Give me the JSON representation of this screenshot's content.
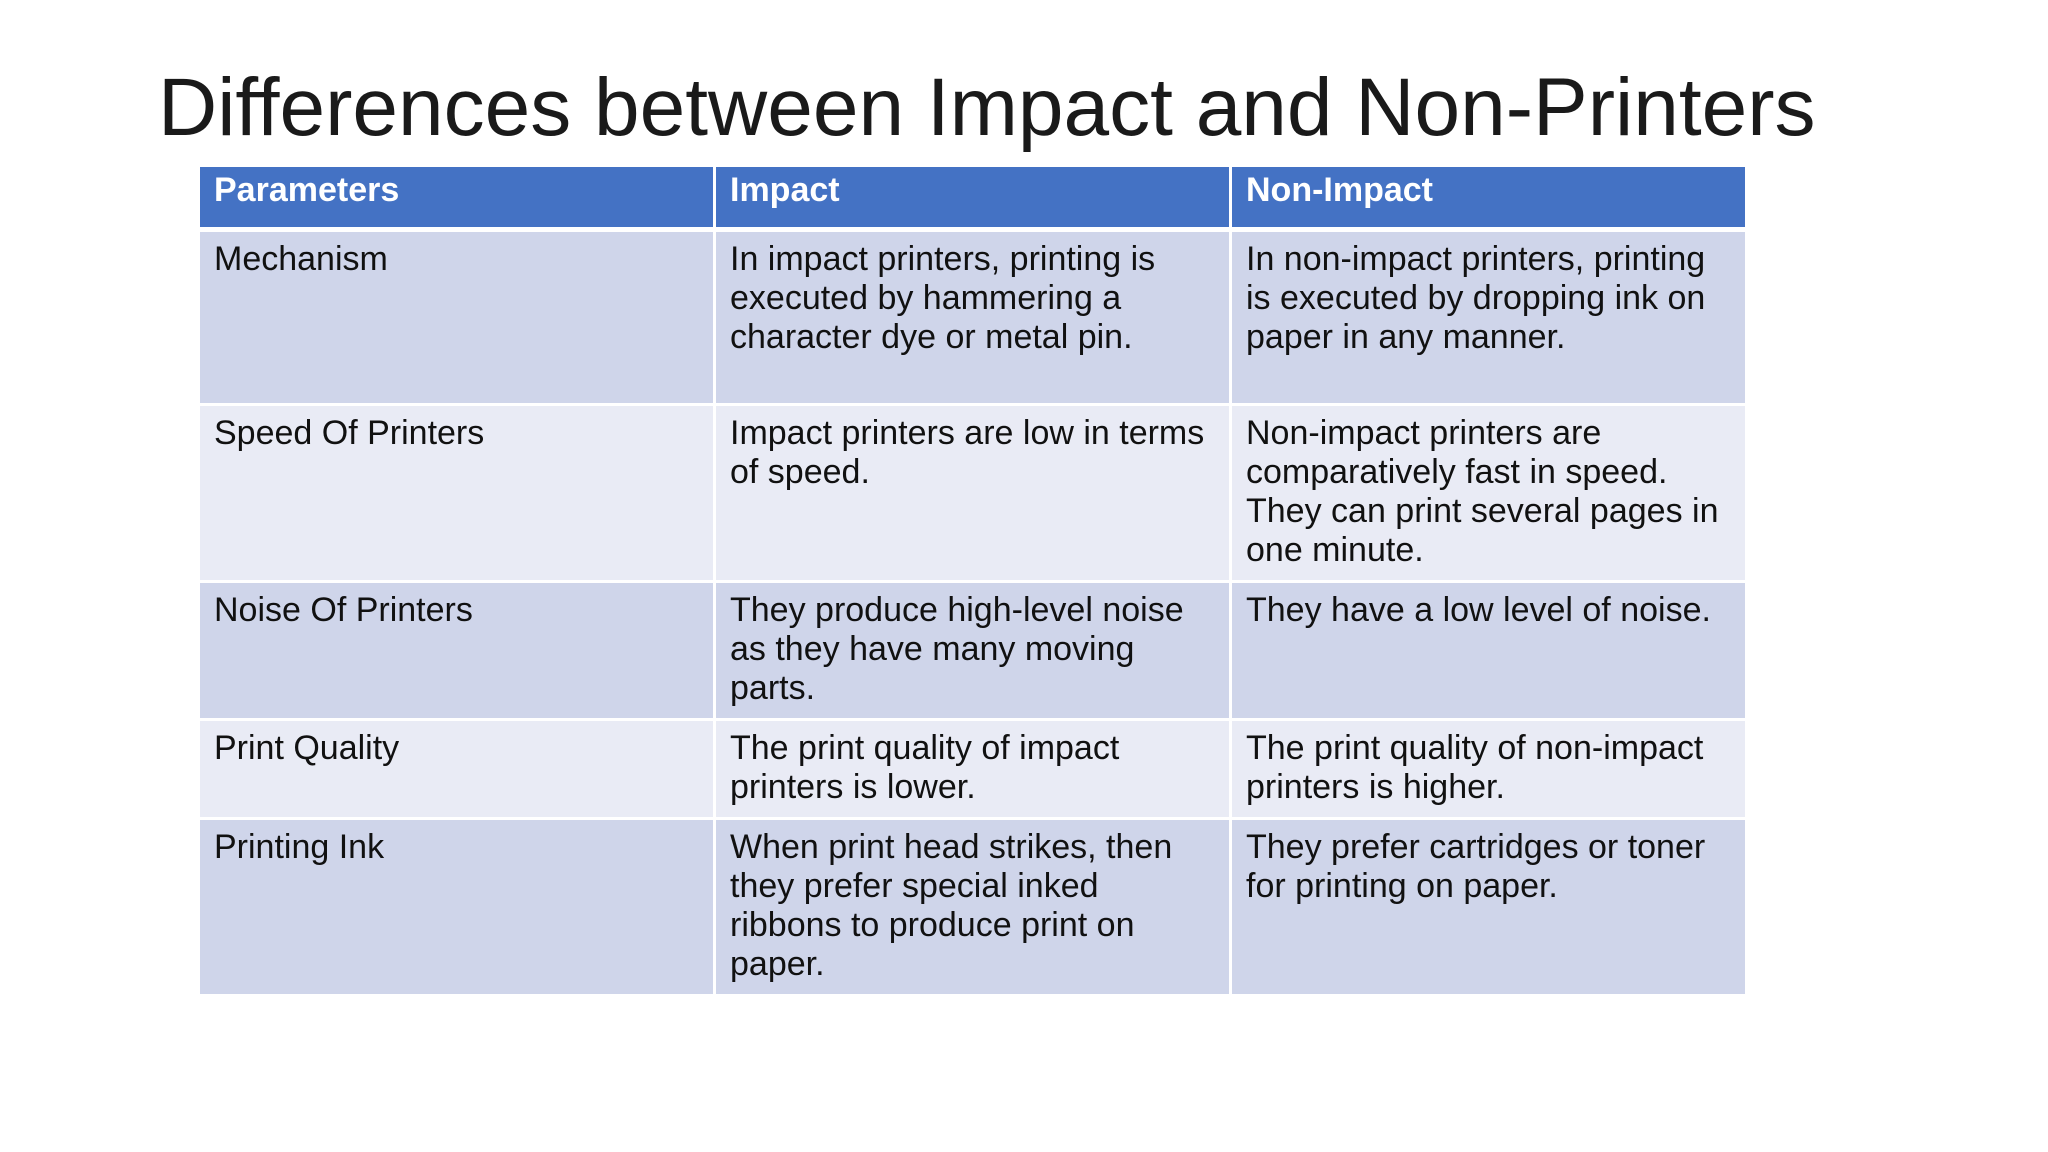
{
  "slide": {
    "title": "Differences between Impact and Non-Printers"
  },
  "table": {
    "headers": [
      "Parameters",
      "Impact",
      "Non-Impact"
    ],
    "rows": [
      {
        "parameter": "Mechanism",
        "impact": "In impact printers, printing is executed by hammering a character dye or metal pin.",
        "non_impact": "In non-impact printers, printing is executed by dropping ink on paper in any manner."
      },
      {
        "parameter": "Speed Of Printers",
        "impact": "Impact printers are low in terms of speed.",
        "non_impact": "Non-impact printers are comparatively fast in speed. They can print several pages in one minute."
      },
      {
        "parameter": "Noise Of Printers",
        "impact": "They produce high-level noise as they have many moving parts.",
        "non_impact": "They have a low level of noise."
      },
      {
        "parameter": "Print Quality",
        "impact": "The print quality of impact printers is lower.",
        "non_impact": "The print quality of non-impact printers is higher."
      },
      {
        "parameter": "Printing Ink",
        "impact": "When print head strikes, then they prefer special inked ribbons to produce print on paper.",
        "non_impact": "They prefer cartridges or toner for printing on paper."
      }
    ]
  },
  "colors": {
    "header_bg": "#4472c4",
    "row_odd_bg": "#cfd5ea",
    "row_even_bg": "#e9ebf5"
  }
}
